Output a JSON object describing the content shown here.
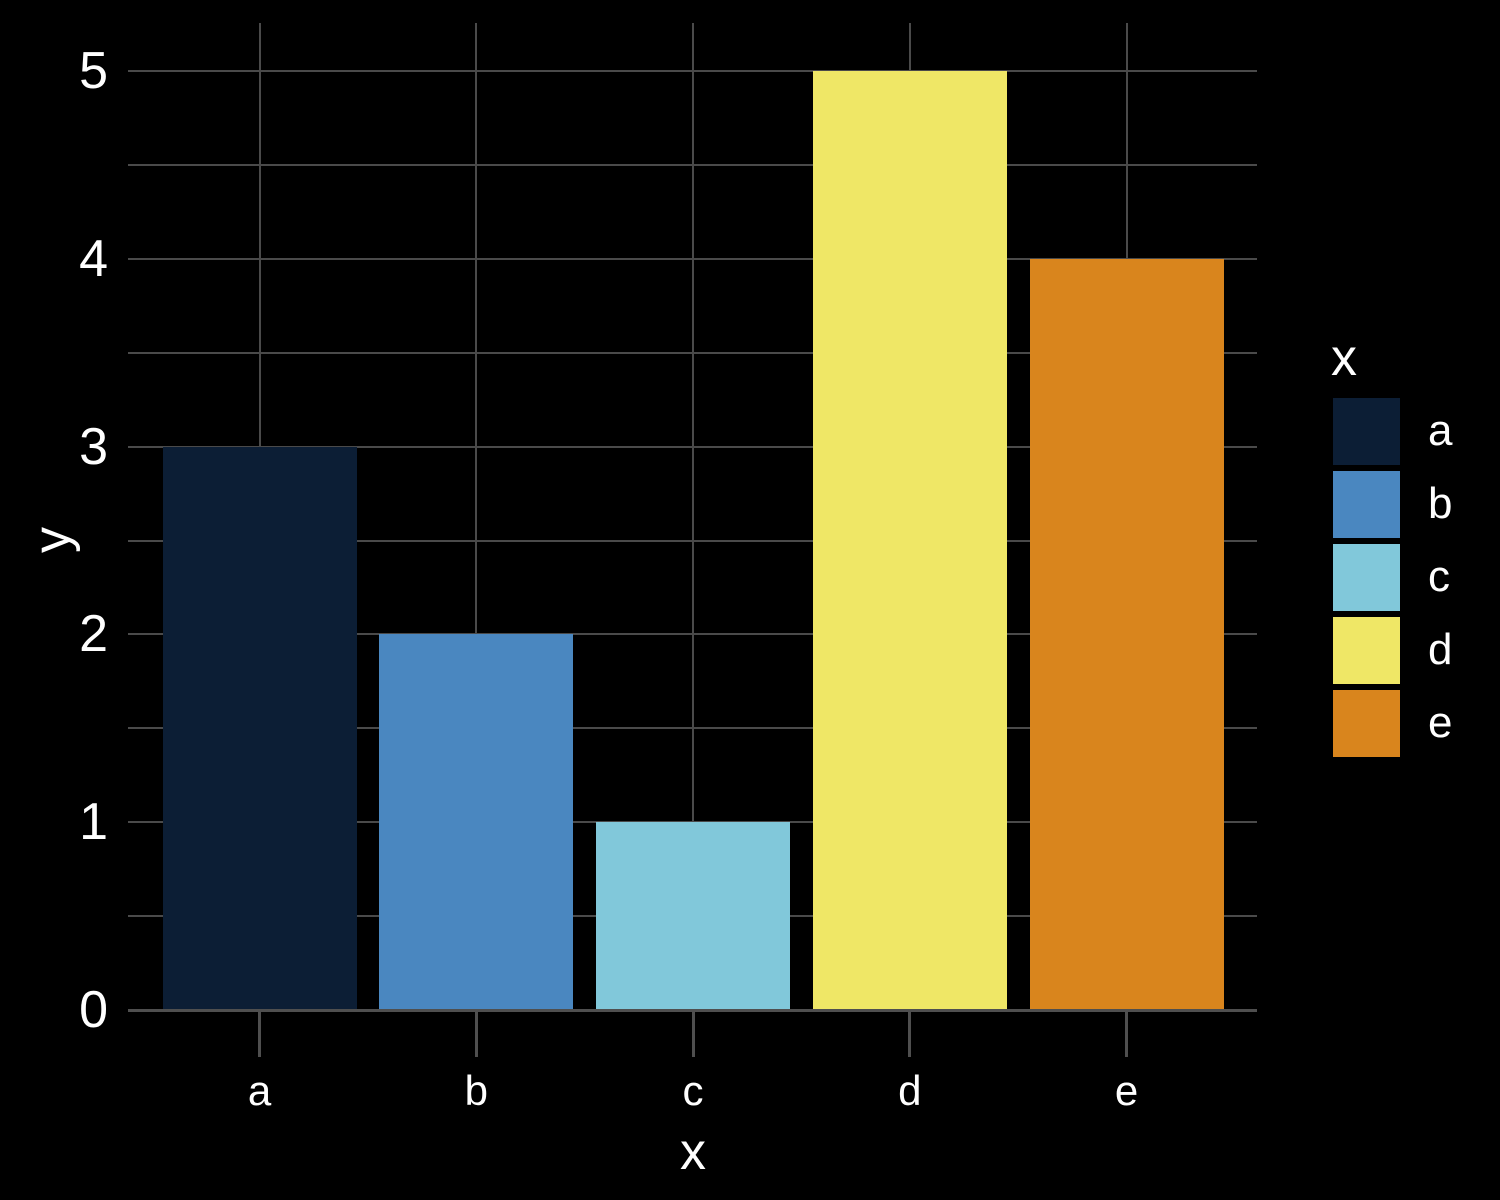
{
  "chart_data": {
    "type": "bar",
    "title": "",
    "categories": [
      "a",
      "b",
      "c",
      "d",
      "e"
    ],
    "values": [
      3,
      2,
      1,
      5,
      4
    ],
    "series_colors": [
      "#0c1e35",
      "#4a87c0",
      "#81c8da",
      "#efe766",
      "#d9851d"
    ],
    "xlabel": "x",
    "ylabel": "y",
    "ylim": [
      0,
      5.25
    ],
    "y_major_ticks": [
      0,
      1,
      2,
      3,
      4,
      5
    ],
    "y_grid_step": 0.5,
    "grid": "horizontal lines every 0.5; vertical lines at category centers; drawn behind bars",
    "legend": {
      "title": "x",
      "position": "right-outside",
      "entries": [
        {
          "label": "a",
          "color": "#0c1e35"
        },
        {
          "label": "b",
          "color": "#4a87c0"
        },
        {
          "label": "c",
          "color": "#81c8da"
        },
        {
          "label": "d",
          "color": "#efe766"
        },
        {
          "label": "e",
          "color": "#d9851d"
        }
      ]
    }
  },
  "style": {
    "background": "#000000",
    "text_color": "#ffffff",
    "gridline_color": "#4a4a4a",
    "axis_line_color": "#4f4f4f"
  }
}
